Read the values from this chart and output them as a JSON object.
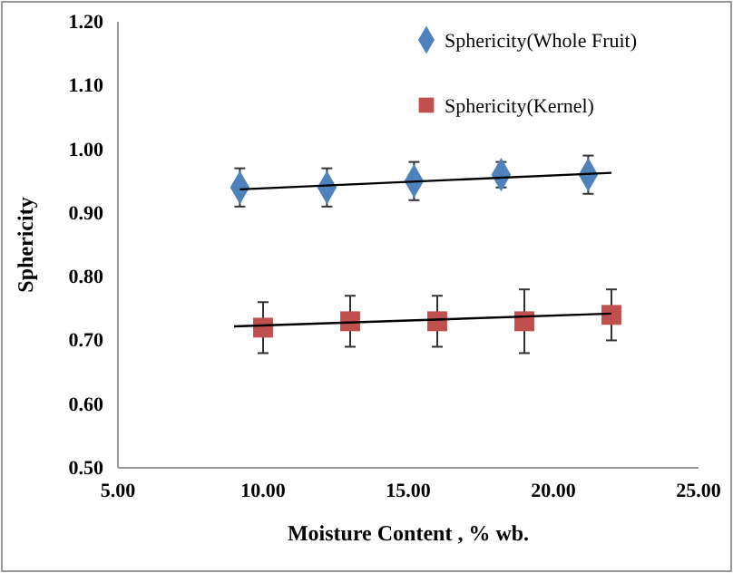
{
  "chart_data": {
    "type": "scatter",
    "xlabel": "Moisture Content , % wb.",
    "ylabel": "Sphericity",
    "xlim": [
      5,
      25
    ],
    "xticks": [
      {
        "value": 5,
        "label": "5.00"
      },
      {
        "value": 10,
        "label": "10.00"
      },
      {
        "value": 15,
        "label": "15.00"
      },
      {
        "value": 20,
        "label": "20.00"
      },
      {
        "value": 25,
        "label": "25.00"
      }
    ],
    "ylim": [
      0.5,
      1.2
    ],
    "yticks": [
      {
        "value": 0.5,
        "label": "0.50"
      },
      {
        "value": 0.6,
        "label": "0.60"
      },
      {
        "value": 0.7,
        "label": "0.70"
      },
      {
        "value": 0.8,
        "label": "0.80"
      },
      {
        "value": 0.9,
        "label": "0.90"
      },
      {
        "value": 1.0,
        "label": "1.00"
      },
      {
        "value": 1.1,
        "label": "1.10"
      },
      {
        "value": 1.2,
        "label": "1.20"
      }
    ],
    "legend": "top right",
    "grid": false,
    "series": [
      {
        "name": "Sphericity(Whole Fruit)",
        "color": "#4f81bd",
        "marker": "diamond",
        "x": [
          9.2,
          12.2,
          15.2,
          18.2,
          21.2
        ],
        "values": [
          0.94,
          0.94,
          0.95,
          0.96,
          0.96
        ],
        "errors": [
          0.03,
          0.03,
          0.03,
          0.02,
          0.03
        ]
      },
      {
        "name": "Sphericity(Kernel)",
        "color": "#c0504d",
        "marker": "square",
        "x": [
          10,
          13,
          16,
          19,
          22
        ],
        "values": [
          0.72,
          0.73,
          0.73,
          0.73,
          0.74
        ],
        "errors": [
          0.04,
          0.04,
          0.04,
          0.05,
          0.04
        ]
      },
      {
        "type": "line",
        "color": "#000000",
        "marker": "none",
        "x": [
          9.2,
          22
        ],
        "values": [
          0.937,
          0.963
        ]
      },
      {
        "type": "line",
        "color": "#000000",
        "marker": "none",
        "x": [
          9,
          22
        ],
        "values": [
          0.722,
          0.742
        ]
      }
    ]
  }
}
